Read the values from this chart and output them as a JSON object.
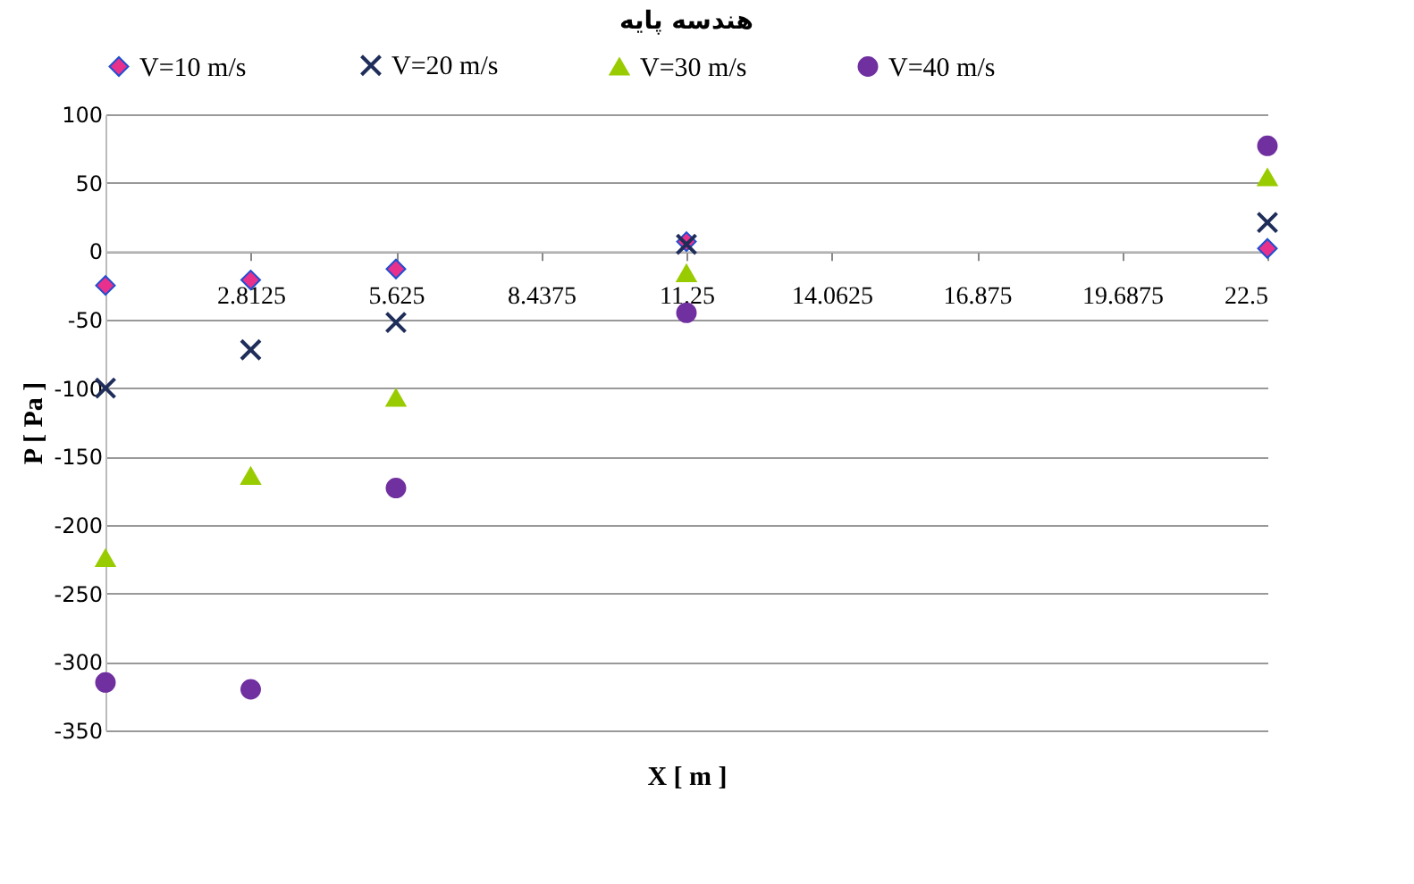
{
  "chart_data": {
    "type": "scatter",
    "title": "هندسه پایه",
    "xlabel": "X [ m ]",
    "ylabel": "P [ Pa ]",
    "x": [
      0,
      2.8125,
      5.625,
      11.25,
      22.5
    ],
    "series": [
      {
        "name": "V=10 m/s",
        "color": "#e8318c",
        "marker": "diamond",
        "values": [
          -25,
          -21,
          -13,
          7,
          2
        ]
      },
      {
        "name": "V=20 m/s",
        "color": "#1f2d5a",
        "marker": "cross",
        "values": [
          -100,
          -72,
          -52,
          5,
          21
        ]
      },
      {
        "name": "V=30 m/s",
        "color": "#99cc00",
        "marker": "triangle",
        "values": [
          -224,
          -164,
          -107,
          -16,
          54
        ]
      },
      {
        "name": "V=40 m/s",
        "color": "#7030a0",
        "marker": "circle",
        "values": [
          -315,
          -320,
          -173,
          -45,
          77
        ]
      }
    ],
    "xlim": [
      0,
      22.5
    ],
    "xticks": [
      2.8125,
      5.625,
      8.4375,
      11.25,
      14.0625,
      16.875,
      19.6875,
      22.5
    ],
    "ylim": [
      -350,
      100
    ],
    "yticks": [
      -350,
      -300,
      -250,
      -200,
      -150,
      -100,
      -50,
      0,
      50,
      100
    ],
    "grid": "y",
    "legend": "top"
  }
}
